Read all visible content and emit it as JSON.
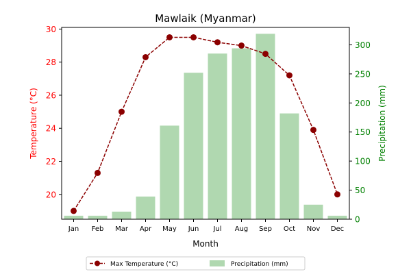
{
  "chart_data": {
    "type": "bar+line",
    "title": "Mawlaik (Myanmar)",
    "xlabel": "Month",
    "ylabel_left": "Temperature (°C)",
    "ylabel_right": "Precipitation (mm)",
    "categories": [
      "Jan",
      "Feb",
      "Mar",
      "Apr",
      "May",
      "Jun",
      "Jul",
      "Aug",
      "Sep",
      "Oct",
      "Nov",
      "Dec"
    ],
    "y_left": {
      "min": 18.5,
      "max": 30.1,
      "ticks": [
        20,
        22,
        24,
        26,
        28,
        30
      ]
    },
    "y_right": {
      "min": 0,
      "max": 330,
      "ticks": [
        0,
        50,
        100,
        150,
        200,
        250,
        300
      ]
    },
    "series": [
      {
        "name": "Max Temperature (°C)",
        "kind": "line",
        "axis": "left",
        "color": "#8b0000",
        "values": [
          19.0,
          21.3,
          25.0,
          28.3,
          29.5,
          29.5,
          29.2,
          29.0,
          28.5,
          27.2,
          23.9,
          20.0
        ]
      },
      {
        "name": "Precipitation (mm)",
        "kind": "bar",
        "axis": "right",
        "color": "#b0d8b0",
        "values": [
          6,
          6,
          13,
          39,
          161,
          252,
          285,
          294,
          319,
          182,
          25,
          6
        ]
      }
    ],
    "colors": {
      "left_axis": "#ff0000",
      "right_axis": "#008000"
    },
    "legend": {
      "placement": "bottom-center",
      "labels": [
        "Max Temperature (°C)",
        "Precipitation (mm)"
      ]
    }
  }
}
